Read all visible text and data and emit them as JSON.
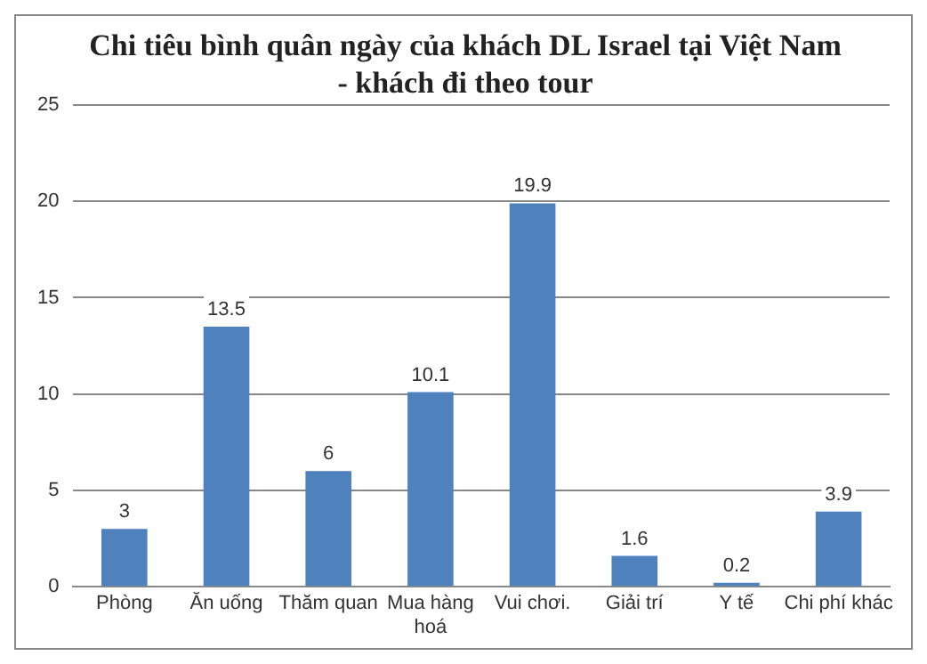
{
  "chart_data": {
    "type": "bar",
    "title": "Chi tiêu bình quân ngày của khách DL Israel tại Việt Nam - khách đi theo tour",
    "categories": [
      "Phòng",
      "Ăn uống",
      "Thăm quan",
      "Mua hàng hoá",
      "Vui chơi.",
      "Giải trí",
      "Y tế",
      "Chi phí khác"
    ],
    "values": [
      3,
      13.5,
      6,
      10.1,
      19.9,
      1.6,
      0.2,
      3.9
    ],
    "color": "#4f81bd",
    "ylim": [
      0,
      25
    ],
    "yticks": [
      0,
      5,
      10,
      15,
      20,
      25
    ],
    "grid": "y",
    "data_labels": true,
    "legend": false
  }
}
